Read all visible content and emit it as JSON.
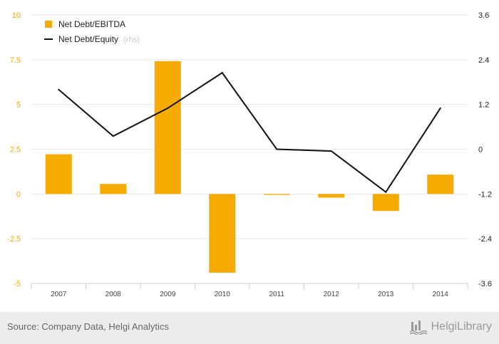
{
  "chart_data": {
    "type": "bar+line",
    "categories": [
      "2007",
      "2008",
      "2009",
      "2010",
      "2011",
      "2012",
      "2013",
      "2014"
    ],
    "series": [
      {
        "name": "Net Debt/EBITDA",
        "type": "bar",
        "axis": "left",
        "color": "#f5ab00",
        "values": [
          2.22,
          0.56,
          7.42,
          -4.4,
          -0.05,
          -0.2,
          -0.95,
          1.08
        ]
      },
      {
        "name": "Net Debt/Equity",
        "legend_note": "(rhs)",
        "type": "line",
        "axis": "right",
        "color": "#111111",
        "values": [
          1.6,
          0.35,
          1.1,
          2.05,
          0.0,
          -0.05,
          -1.15,
          1.1
        ]
      }
    ],
    "y_left": {
      "ticks": [
        "10",
        "7.5",
        "5",
        "2.5",
        "0",
        "-2.5",
        "-5"
      ],
      "min": -5,
      "max": 10
    },
    "y_right": {
      "ticks": [
        "3.6",
        "2.4",
        "1.2",
        "0",
        "-1.2",
        "-2.4",
        "-3.6"
      ],
      "min": -3.6,
      "max": 3.6
    },
    "grid": true,
    "legend_position": "top-left"
  },
  "footer": {
    "source": "Source: Company Data, Helgi Analytics",
    "brand": "HelgiLibrary",
    "brand_icon": "factory-icon"
  }
}
